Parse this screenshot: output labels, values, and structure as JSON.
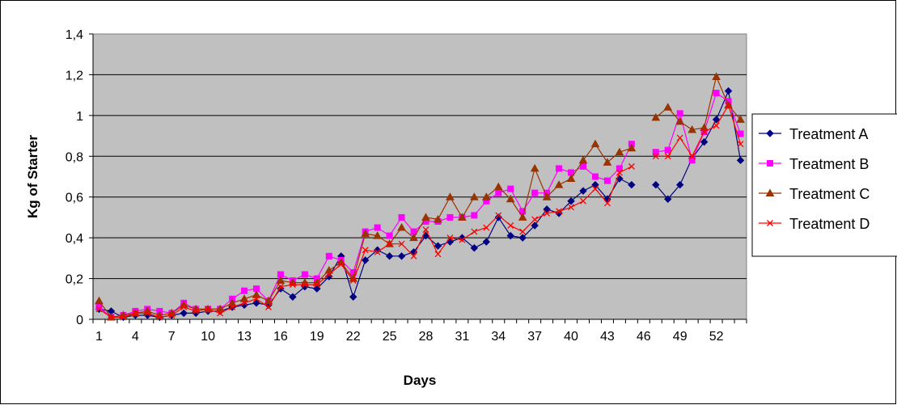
{
  "chart_data": {
    "type": "line",
    "xlabel": "Days",
    "ylabel": "Kg of Starter",
    "ylim": [
      0,
      1.4
    ],
    "y_ticks": [
      "0",
      "0,2",
      "0,4",
      "0,6",
      "0,8",
      "1",
      "1,2",
      "1,4"
    ],
    "y_tick_values": [
      0,
      0.2,
      0.4,
      0.6,
      0.8,
      1.0,
      1.2,
      1.4
    ],
    "x_ticks": [
      "1",
      "4",
      "7",
      "10",
      "13",
      "16",
      "19",
      "22",
      "25",
      "28",
      "31",
      "34",
      "37",
      "40",
      "43",
      "46",
      "49",
      "52"
    ],
    "x_tick_values": [
      1,
      4,
      7,
      10,
      13,
      16,
      19,
      22,
      25,
      28,
      31,
      34,
      37,
      40,
      43,
      46,
      49,
      52
    ],
    "x_range": [
      1,
      54
    ],
    "grid": "horizontal",
    "plot_background": "#c0c0c0",
    "legend_position": "right",
    "series": [
      {
        "name": "Treatment A",
        "color": "#000080",
        "marker": "diamond",
        "values": [
          0.05,
          0.04,
          0.01,
          0.02,
          0.02,
          0.01,
          0.02,
          0.03,
          0.03,
          0.04,
          0.04,
          0.06,
          0.07,
          0.08,
          0.07,
          0.15,
          0.11,
          0.16,
          0.15,
          0.21,
          0.31,
          0.11,
          0.29,
          0.34,
          0.31,
          0.31,
          0.33,
          0.41,
          0.36,
          0.38,
          0.4,
          0.35,
          0.38,
          0.5,
          0.41,
          0.4,
          0.46,
          0.54,
          0.52,
          0.58,
          0.63,
          0.66,
          0.59,
          0.69,
          0.66,
          null,
          0.66,
          0.59,
          0.66,
          0.79,
          0.87,
          0.98,
          1.12,
          0.78
        ]
      },
      {
        "name": "Treatment B",
        "color": "#ff00ff",
        "marker": "square",
        "values": [
          0.06,
          0.01,
          0.02,
          0.04,
          0.05,
          0.04,
          0.03,
          0.08,
          0.05,
          0.05,
          0.05,
          0.1,
          0.14,
          0.15,
          0.09,
          0.22,
          0.19,
          0.22,
          0.2,
          0.31,
          0.29,
          0.23,
          0.43,
          0.45,
          0.41,
          0.5,
          0.43,
          0.48,
          0.48,
          0.5,
          0.5,
          0.51,
          0.58,
          0.62,
          0.64,
          0.53,
          0.62,
          0.62,
          0.74,
          0.72,
          0.75,
          0.7,
          0.68,
          0.74,
          0.86,
          null,
          0.82,
          0.83,
          1.01,
          0.78,
          0.92,
          1.11,
          1.07,
          0.91
        ]
      },
      {
        "name": "Treatment C",
        "color": "#993300",
        "marker": "triangle",
        "values": [
          0.09,
          0.01,
          0.02,
          0.03,
          0.04,
          0.02,
          0.03,
          0.07,
          0.05,
          0.05,
          0.05,
          0.08,
          0.1,
          0.12,
          0.09,
          0.19,
          0.18,
          0.18,
          0.18,
          0.24,
          0.28,
          0.2,
          0.42,
          0.41,
          0.37,
          0.45,
          0.4,
          0.5,
          0.49,
          0.6,
          0.5,
          0.6,
          0.6,
          0.65,
          0.59,
          0.5,
          0.74,
          0.6,
          0.66,
          0.69,
          0.78,
          0.86,
          0.77,
          0.82,
          0.84,
          null,
          0.99,
          1.04,
          0.97,
          0.93,
          0.94,
          1.19,
          1.05,
          0.98
        ]
      },
      {
        "name": "Treatment D",
        "color": "#ff0000",
        "marker": "x",
        "values": [
          0.05,
          0.01,
          0.01,
          0.03,
          0.03,
          0.01,
          0.02,
          0.06,
          0.04,
          0.05,
          0.03,
          0.06,
          0.08,
          0.1,
          0.06,
          0.16,
          0.17,
          0.17,
          0.17,
          0.22,
          0.27,
          0.19,
          0.34,
          0.33,
          0.37,
          0.37,
          0.31,
          0.44,
          0.32,
          0.4,
          0.39,
          0.43,
          0.45,
          0.51,
          0.46,
          0.43,
          0.49,
          0.52,
          0.53,
          0.55,
          0.58,
          0.64,
          0.57,
          0.72,
          0.75,
          null,
          0.8,
          0.8,
          0.89,
          0.8,
          0.92,
          0.95,
          1.05,
          0.86
        ]
      }
    ]
  }
}
